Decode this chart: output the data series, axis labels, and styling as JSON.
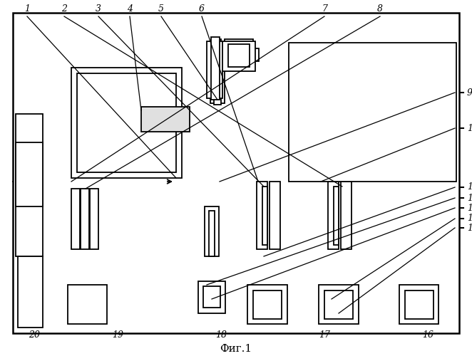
{
  "title": "Фиг.1",
  "lw": 1.3,
  "fig_width": 6.62,
  "fig_height": 5.0
}
